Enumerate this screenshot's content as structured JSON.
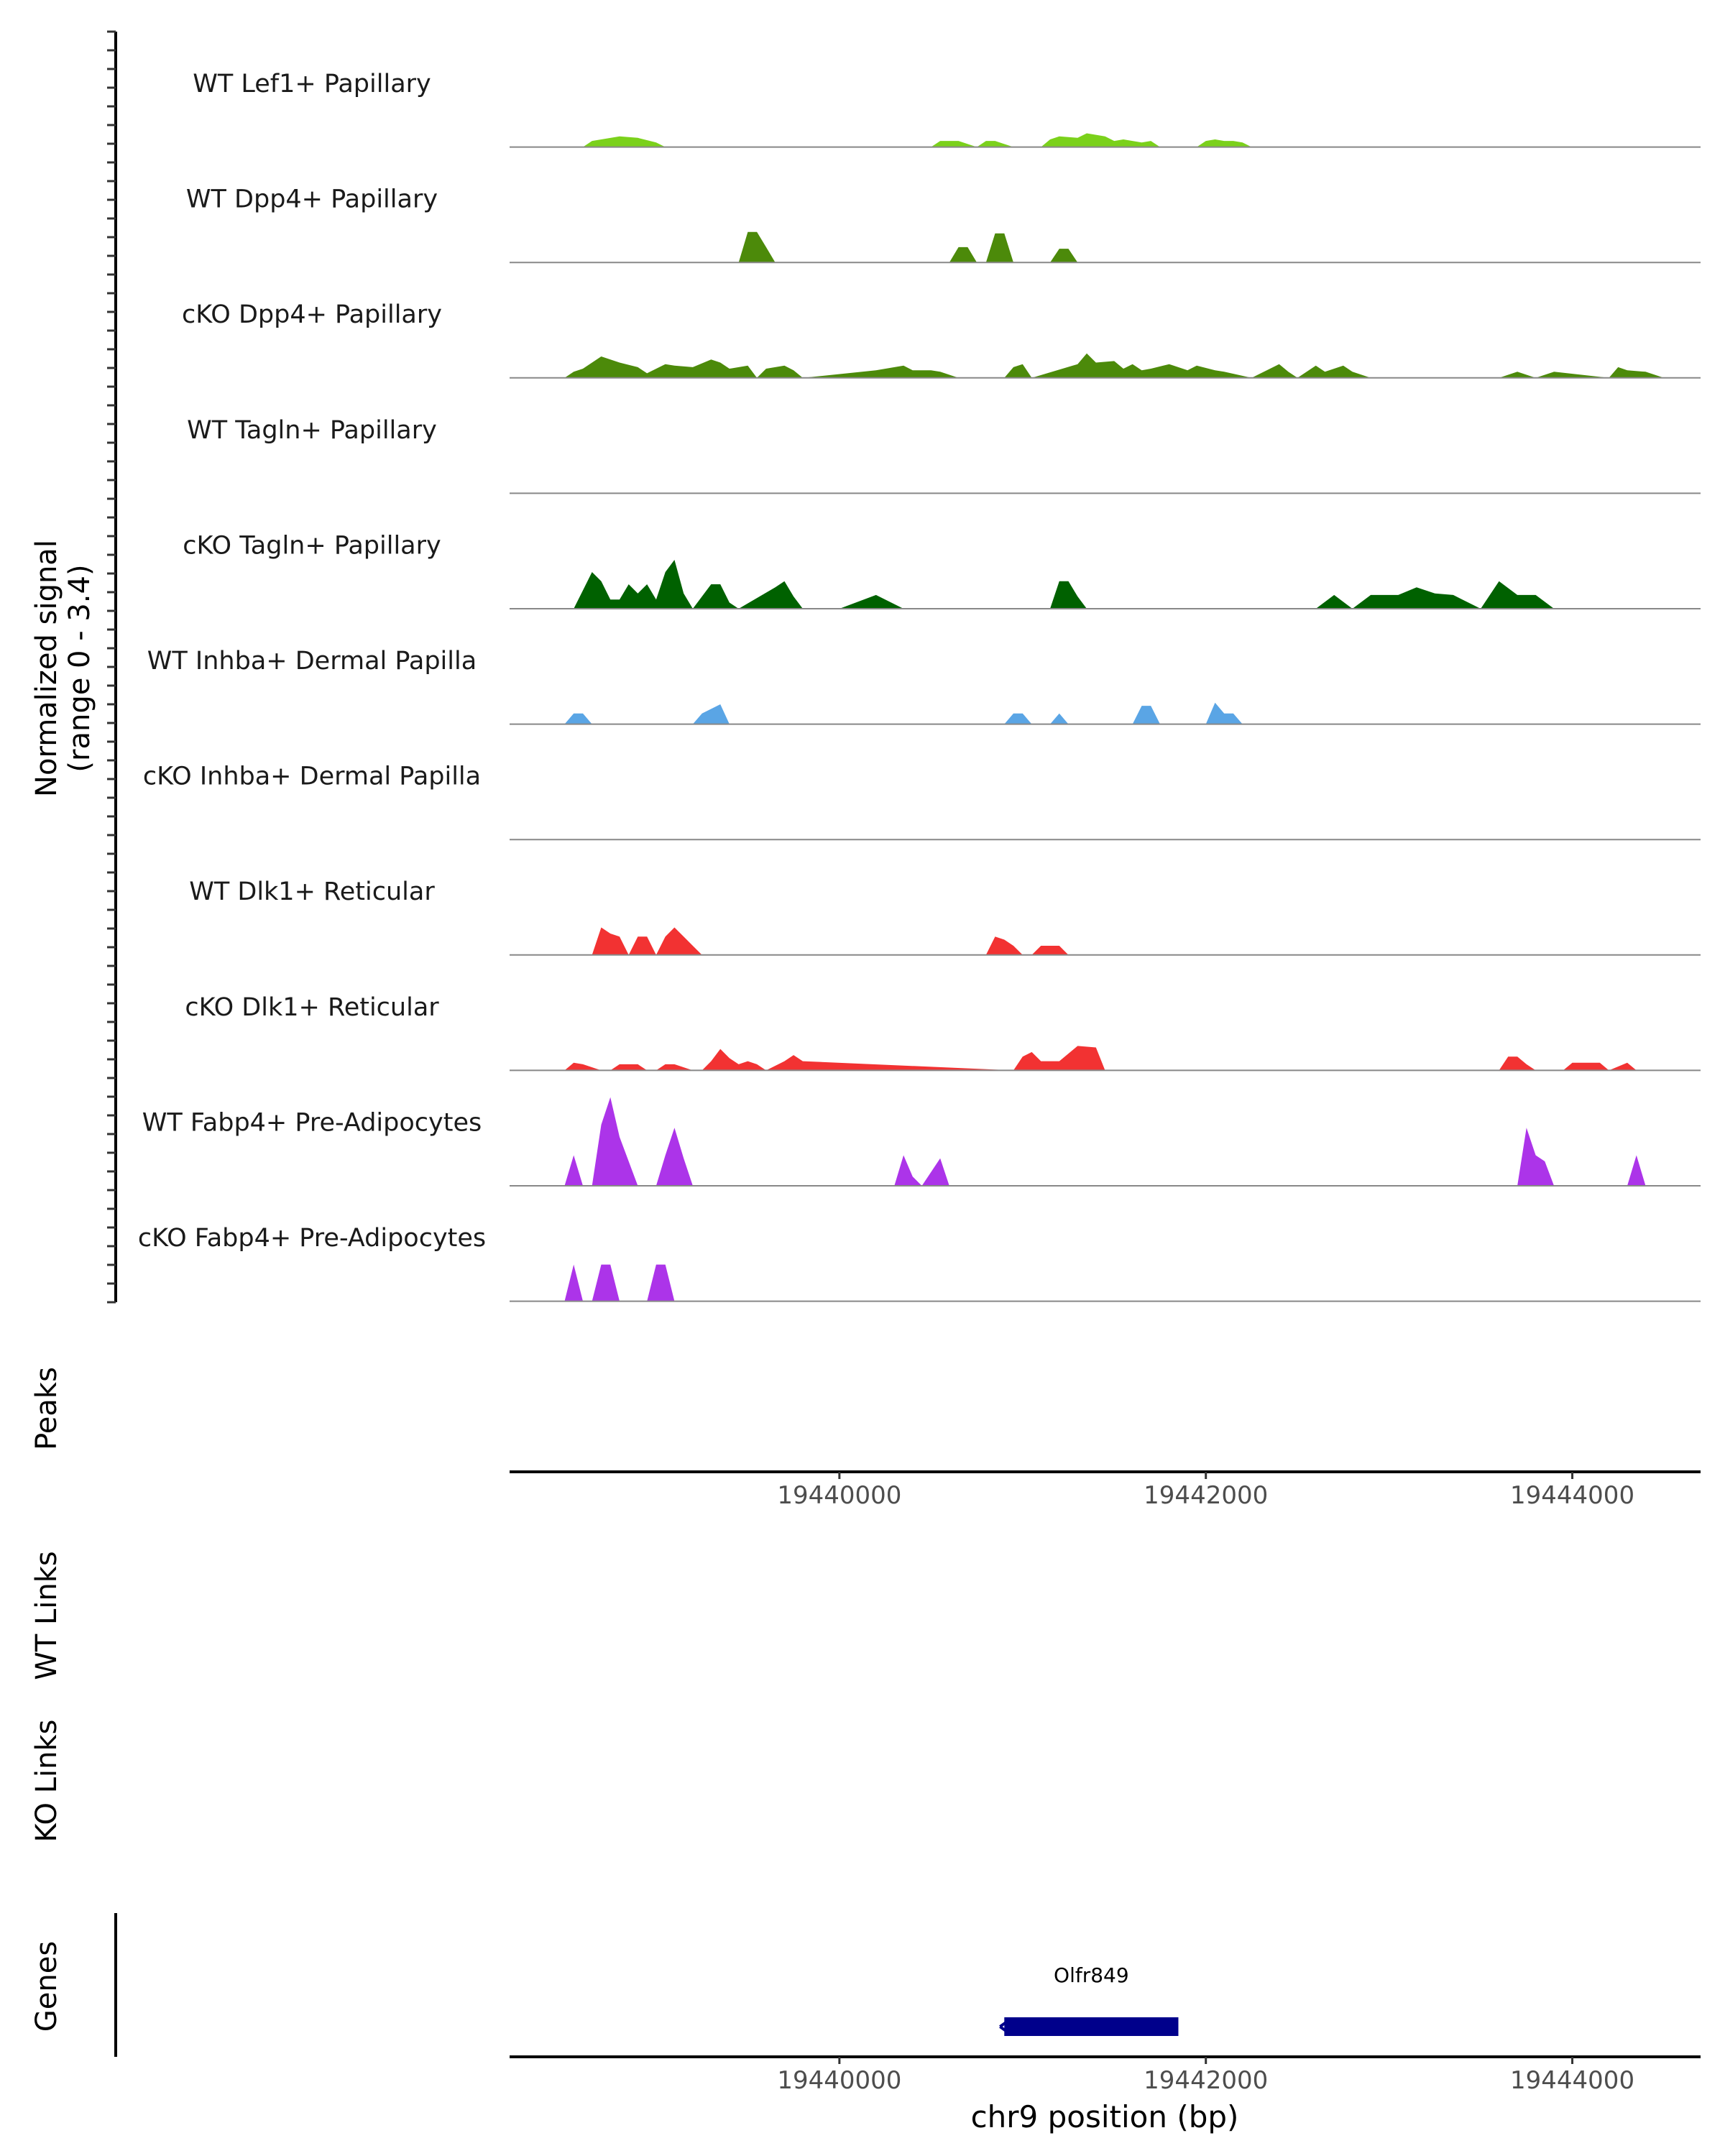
{
  "chart_data": {
    "type": "area",
    "title": "",
    "ylabel_line1": "Normalized signal",
    "ylabel_line2": "(range 0 - 3.4)",
    "y_range": [
      0,
      3.4
    ],
    "xlabel": "chr9 position (bp)",
    "x_range": [
      19438200,
      19444700
    ],
    "x_ticks": [
      19440000,
      19442000,
      19444000
    ],
    "x_tick_labels": [
      "19440000",
      "19442000",
      "19444000"
    ],
    "tracks": [
      {
        "name": "WT Lef1+ Papillary",
        "color": "#7bd11b",
        "x": [
          19438600,
          19438650,
          19438700,
          19438800,
          19438900,
          19439000,
          19439050,
          19440500,
          19440550,
          19440650,
          19440750,
          19440800,
          19440850,
          19440950,
          19441100,
          19441150,
          19441200,
          19441300,
          19441350,
          19441400,
          19441450,
          19441500,
          19441550,
          19441600,
          19441650,
          19441700,
          19441750,
          19441950,
          19442000,
          19442050,
          19442100,
          19442150,
          19442200,
          19442250
        ],
        "y": [
          0,
          0.2,
          0.25,
          0.35,
          0.3,
          0.15,
          0,
          0,
          0.2,
          0.2,
          0.0,
          0.2,
          0.2,
          0,
          0,
          0.25,
          0.35,
          0.3,
          0.45,
          0.4,
          0.35,
          0.2,
          0.25,
          0.2,
          0.15,
          0.2,
          0,
          0,
          0.2,
          0.25,
          0.2,
          0.2,
          0.15,
          0
        ],
        "peaks": [],
        "_note": "low-level fragments"
      },
      {
        "name": "WT Dpp4+ Papillary",
        "color": "#4c8a0a",
        "x": [
          19439450,
          19439500,
          19439550,
          19439600,
          19439650,
          19440600,
          19440650,
          19440700,
          19440750,
          19440800,
          19440850,
          19440900,
          19440950,
          19441150,
          19441200,
          19441250,
          19441300
        ],
        "y": [
          0,
          1.0,
          1.0,
          0.5,
          0,
          0,
          0.5,
          0.5,
          0,
          0,
          0.95,
          0.95,
          0,
          0,
          0.45,
          0.45,
          0
        ]
      },
      {
        "name": "cKO Dpp4+ Papillary",
        "color": "#4c8a0a",
        "x": [
          19438500,
          19438550,
          19438600,
          19438700,
          19438800,
          19438900,
          19438950,
          19439050,
          19439100,
          19439200,
          19439300,
          19439350,
          19439400,
          19439500,
          19439550,
          19439600,
          19439700,
          19439750,
          19439800,
          19440200,
          19440350,
          19440400,
          19440500,
          19440550,
          19440650,
          19440900,
          19440950,
          19441000,
          19441050,
          19441300,
          19441350,
          19441400,
          19441500,
          19441550,
          19441600,
          19441650,
          19441700,
          19441800,
          19441900,
          19441950,
          19442050,
          19442100,
          19442250,
          19442400,
          19442450,
          19442500,
          19442600,
          19442650,
          19442750,
          19442800,
          19442900,
          19443600,
          19443700,
          19443800,
          19443900,
          19444200,
          19444250,
          19444300,
          19444400,
          19444500
        ],
        "y": [
          0,
          0.2,
          0.3,
          0.7,
          0.5,
          0.35,
          0.15,
          0.45,
          0.4,
          0.35,
          0.6,
          0.5,
          0.3,
          0.4,
          0,
          0.3,
          0.4,
          0.25,
          0,
          0.25,
          0.4,
          0.25,
          0.25,
          0.2,
          0,
          0,
          0.35,
          0.45,
          0,
          0.45,
          0.8,
          0.5,
          0.55,
          0.3,
          0.45,
          0.25,
          0.3,
          0.45,
          0.25,
          0.4,
          0.25,
          0.2,
          0,
          0.45,
          0.2,
          0,
          0.4,
          0.2,
          0.4,
          0.2,
          0,
          0,
          0.2,
          0,
          0.2,
          0,
          0.35,
          0.25,
          0.2,
          0
        ]
      },
      {
        "name": "WT Tagln+ Papillary",
        "color": "#006100",
        "x": [],
        "y": []
      },
      {
        "name": "cKO Tagln+ Papillary",
        "color": "#006100",
        "x": [
          19438550,
          19438600,
          19438650,
          19438700,
          19438750,
          19438800,
          19438850,
          19438900,
          19438950,
          19439000,
          19439050,
          19439100,
          19439150,
          19439200,
          19439300,
          19439350,
          19439400,
          19439450,
          19439650,
          19439700,
          19439750,
          19439800,
          19440000,
          19440200,
          19440350,
          19441150,
          19441200,
          19441250,
          19441300,
          19441350,
          19442600,
          19442700,
          19442800,
          19442900,
          19443050,
          19443150,
          19443250,
          19443350,
          19443500,
          19443600,
          19443700,
          19443800,
          19443900
        ],
        "y": [
          0,
          0.6,
          1.2,
          0.9,
          0.3,
          0.3,
          0.8,
          0.5,
          0.8,
          0.3,
          1.2,
          1.6,
          0.5,
          0,
          0.8,
          0.8,
          0.2,
          0,
          0.7,
          0.9,
          0.4,
          0,
          0,
          0.45,
          0,
          0,
          0.9,
          0.9,
          0.4,
          0,
          0,
          0.45,
          0,
          0.45,
          0.45,
          0.7,
          0.5,
          0.45,
          0,
          0.9,
          0.45,
          0.45,
          0
        ]
      },
      {
        "name": "WT Inhba+ Dermal Papilla",
        "color": "#5aa5e5",
        "x": [
          19438500,
          19438550,
          19438600,
          19438650,
          19439200,
          19439250,
          19439350,
          19439400,
          19440900,
          19440950,
          19441000,
          19441050,
          19441150,
          19441200,
          19441250,
          19441600,
          19441650,
          19441700,
          19441750,
          19442000,
          19442050,
          19442100,
          19442150,
          19442200
        ],
        "y": [
          0,
          0.35,
          0.35,
          0,
          0,
          0.35,
          0.65,
          0,
          0,
          0.35,
          0.35,
          0,
          0,
          0.35,
          0,
          0,
          0.6,
          0.6,
          0,
          0,
          0.7,
          0.35,
          0.35,
          0
        ]
      },
      {
        "name": "cKO Inhba+ Dermal Papilla",
        "color": "#5aa5e5",
        "x": [],
        "y": []
      },
      {
        "name": "WT Dlk1+ Reticular",
        "color": "#f23232",
        "x": [
          19438650,
          19438700,
          19438750,
          19438800,
          19438850,
          19438900,
          19438950,
          19439000,
          19439050,
          19439100,
          19439150,
          19439200,
          19439250,
          19440800,
          19440850,
          19440900,
          19440950,
          19441000,
          19441050,
          19441100,
          19441150,
          19441200,
          19441250
        ],
        "y": [
          0,
          0.9,
          0.7,
          0.6,
          0,
          0.6,
          0.6,
          0,
          0.6,
          0.9,
          0.6,
          0.3,
          0,
          0,
          0.6,
          0.5,
          0.3,
          0,
          0,
          0.3,
          0.3,
          0.3,
          0
        ]
      },
      {
        "name": "cKO Dlk1+ Reticular",
        "color": "#f23232",
        "x": [
          19438500,
          19438550,
          19438600,
          19438700,
          19438750,
          19438800,
          19438900,
          19438950,
          19439000,
          19439050,
          19439100,
          19439200,
          19439250,
          19439300,
          19439350,
          19439400,
          19439450,
          19439500,
          19439550,
          19439600,
          19439700,
          19439750,
          19439800,
          19440950,
          19441000,
          19441050,
          19441100,
          19441150,
          19441200,
          19441300,
          19441400,
          19441450,
          19443600,
          19443650,
          19443700,
          19443750,
          19443800,
          19443950,
          19444000,
          19444150,
          19444200,
          19444300,
          19444350
        ],
        "y": [
          0,
          0.25,
          0.2,
          0,
          0,
          0.2,
          0.2,
          0,
          0,
          0.2,
          0.2,
          0,
          0,
          0.3,
          0.7,
          0.4,
          0.2,
          0.3,
          0.2,
          0,
          0.3,
          0.5,
          0.3,
          0,
          0.45,
          0.6,
          0.3,
          0.3,
          0.3,
          0.8,
          0.75,
          0,
          0,
          0.45,
          0.45,
          0.2,
          0,
          0,
          0.25,
          0.25,
          0,
          0.25,
          0
        ]
      },
      {
        "name": "WT Fabp4+ Pre-Adipocytes",
        "color": "#ac34e9",
        "x": [
          19438500,
          19438550,
          19438600,
          19438650,
          19438700,
          19438750,
          19438800,
          19438900,
          19439000,
          19439050,
          19439100,
          19439150,
          19439200,
          19439300,
          19440300,
          19440350,
          19440400,
          19440450,
          19440550,
          19440600,
          19443700,
          19443750,
          19443800,
          19443850,
          19443900,
          19443950,
          19444300,
          19444350,
          19444400
        ],
        "y": [
          0,
          1.0,
          0,
          0,
          2.0,
          2.9,
          1.6,
          0,
          0,
          1.0,
          1.9,
          0.9,
          0,
          0,
          0,
          1.0,
          0.3,
          0,
          0.9,
          0,
          0,
          1.9,
          1.0,
          0.8,
          0,
          0,
          0,
          1.0,
          0
        ]
      },
      {
        "name": "cKO Fabp4+ Pre-Adipocytes",
        "color": "#ac34e9",
        "x": [
          19438500,
          19438550,
          19438600,
          19438650,
          19438700,
          19438750,
          19438800,
          19438950,
          19439000,
          19439050,
          19439100,
          19439150
        ],
        "y": [
          0,
          1.2,
          0,
          0,
          1.2,
          1.2,
          0,
          0,
          1.2,
          1.2,
          0,
          0
        ]
      }
    ],
    "panels": {
      "peaks_label": "Peaks",
      "wt_links_label": "WT Links",
      "ko_links_label": "KO Links",
      "genes_label": "Genes"
    },
    "genes": [
      {
        "name": "Olfr849",
        "start": 19440900,
        "end": 19441850,
        "strand": "-",
        "color": "#00008b"
      }
    ]
  }
}
